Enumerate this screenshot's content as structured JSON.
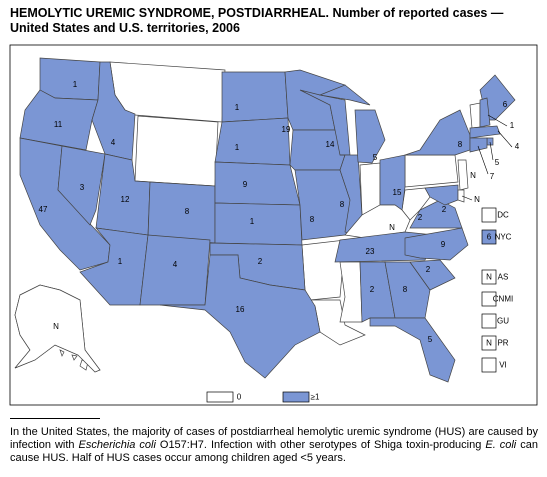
{
  "title_lines": [
    "HEMOLYTIC UREMIC SYNDROME, POSTDIARRHEAL. Number of reported cases —",
    "United States and U.S. territories, 2006"
  ],
  "regions": [
    {
      "label": "1",
      "fill": "#7b96d4"
    },
    {
      "label": "11",
      "fill": "#7b96d4"
    },
    {
      "label": "47",
      "fill": "#7b96d4"
    },
    {
      "label": "3",
      "fill": "#7b96d4"
    },
    {
      "label": "4",
      "fill": "#7b96d4"
    },
    {
      "label": "12",
      "fill": "#7b96d4"
    },
    {
      "label": "8",
      "fill": "#7b96d4"
    },
    {
      "label": "1",
      "fill": "#7b96d4"
    },
    {
      "label": "4",
      "fill": "#7b96d4"
    },
    {
      "label": "1",
      "fill": "#7b96d4"
    },
    {
      "label": "1",
      "fill": "#7b96d4"
    },
    {
      "label": "9",
      "fill": "#7b96d4"
    },
    {
      "label": "1",
      "fill": "#7b96d4"
    },
    {
      "label": "2",
      "fill": "#7b96d4"
    },
    {
      "label": "16",
      "fill": "#7b96d4"
    },
    {
      "label": "19",
      "fill": "#7b96d4"
    },
    {
      "label": "9",
      "fill": "#7b96d4"
    },
    {
      "label": "8",
      "fill": "#7b96d4"
    },
    {
      "label": "14",
      "fill": "#7b96d4"
    },
    {
      "label": "8",
      "fill": "#7b96d4"
    },
    {
      "label": "5",
      "fill": "#7b96d4"
    },
    {
      "label": "15",
      "fill": "#7b96d4"
    },
    {
      "label": "N",
      "fill": "#ffffff"
    },
    {
      "label": "23",
      "fill": "#7b96d4"
    },
    {
      "label": "2",
      "fill": "#7b96d4"
    },
    {
      "label": "8",
      "fill": "#7b96d4"
    },
    {
      "label": "5",
      "fill": "#7b96d4"
    },
    {
      "label": "2",
      "fill": "#7b96d4"
    },
    {
      "label": "9",
      "fill": "#7b96d4"
    },
    {
      "label": "2",
      "fill": "#7b96d4"
    },
    {
      "label": "2",
      "fill": "#7b96d4"
    },
    {
      "label": "8",
      "fill": "#7b96d4"
    },
    {
      "label": "6",
      "fill": "#7b96d4"
    },
    {
      "label": "1",
      "fill": "#7b96d4"
    },
    {
      "label": "4",
      "fill": "#7b96d4"
    },
    {
      "label": "5",
      "fill": "#7b96d4"
    },
    {
      "label": "7",
      "fill": "#7b96d4"
    },
    {
      "label": "N",
      "fill": "#ffffff"
    },
    {
      "label": "N",
      "fill": "#ffffff"
    },
    {
      "label": "N",
      "fill": "#ffffff"
    }
  ],
  "territories": [
    {
      "name": "DC",
      "fill": "#ffffff"
    },
    {
      "name": "NYC",
      "label": "6",
      "fill": "#7b96d4"
    },
    {
      "name": "AS",
      "label": "N",
      "fill": "#ffffff"
    },
    {
      "name": "CNMI",
      "fill": "#ffffff"
    },
    {
      "name": "GU",
      "fill": "#ffffff"
    },
    {
      "name": "PR",
      "label": "N",
      "fill": "#ffffff"
    },
    {
      "name": "VI",
      "fill": "#ffffff"
    }
  ],
  "legend": [
    {
      "label": "0",
      "fill": "#ffffff"
    },
    {
      "label": "≥1",
      "fill": "#7b96d4"
    }
  ],
  "footnote": [
    {
      "text": "In the United States, the majority of cases of postdiarrheal hemolytic uremic syndrome (HUS) are caused by infection with "
    },
    {
      "text": "Escherichia coli",
      "italic": true
    },
    {
      "text": " O157:H7. Infection with other serotypes of Shiga toxin-producing "
    },
    {
      "text": "E. coli",
      "italic": true
    },
    {
      "text": " can cause HUS. Half of HUS cases occur among children aged <5 years."
    }
  ]
}
